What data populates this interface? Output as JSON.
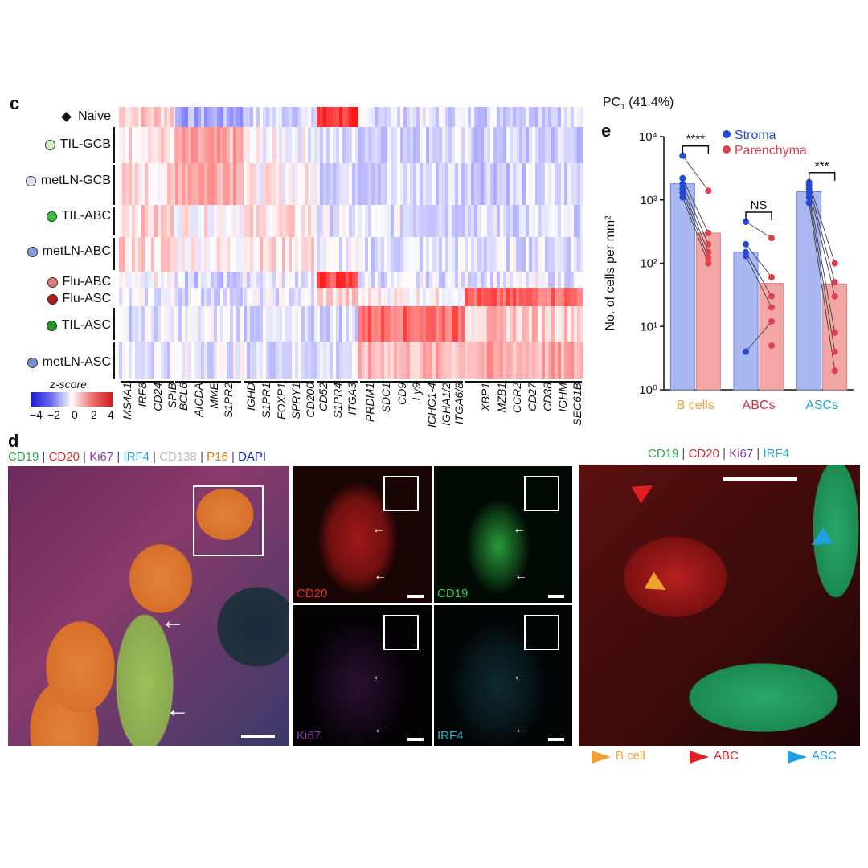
{
  "panel_c": {
    "letter": "c",
    "pc_label_main": "PC",
    "pc_label_sub": "1",
    "pc_label_pct": "(41.4%)",
    "row_labels": [
      {
        "label": "Naive",
        "marker": "diamond",
        "color": "#111111"
      },
      {
        "label": "TIL-GCB",
        "marker": "dot",
        "color": "#d8f0c8"
      },
      {
        "label": "metLN-GCB",
        "marker": "dot",
        "color": "#d8e2f4"
      },
      {
        "label": "TIL-ABC",
        "marker": "dot",
        "color": "#3fbf3f"
      },
      {
        "label": "metLN-ABC",
        "marker": "dot",
        "color": "#7f9fd8"
      },
      {
        "label": "Flu-ABC",
        "marker": "dot",
        "color": "#e07a7a"
      },
      {
        "label": "Flu-ASC",
        "marker": "dot",
        "color": "#b21a1a"
      },
      {
        "label": "TIL-ASC",
        "marker": "dot",
        "color": "#1f9a2a"
      },
      {
        "label": "metLN-ASC",
        "marker": "dot",
        "color": "#6f8fd0"
      }
    ],
    "genes": [
      "MS4A1",
      "IRF8",
      "CD24",
      "SPIB",
      "BCL6",
      "AICDA",
      "MME",
      "S1PR2",
      "IGHD",
      "S1PR1",
      "FOXP1",
      "SPRY1",
      "CD200",
      "CD52",
      "S1PR4",
      "ITGA3",
      "PRDM1",
      "SDC1",
      "CD9",
      "Ly9",
      "IGHG1-4",
      "IGHA1/2",
      "ITGA6/8",
      "XBP1",
      "MZB1",
      "CCR2",
      "CD27",
      "CD38",
      "IGHM",
      "SEC61B"
    ],
    "colorbar": {
      "title": "z-score",
      "ticks": [
        "−4",
        "−2",
        "0",
        "2",
        "4"
      ]
    }
  },
  "panel_e": {
    "letter": "e",
    "ylabel": "No. of cells per mm²",
    "yticks": [
      "10⁰",
      "10¹",
      "10²",
      "10³",
      "10⁴"
    ],
    "legend": [
      {
        "label": "Stroma",
        "color": "#2448d8"
      },
      {
        "label": "Parenchyma",
        "color": "#e04050"
      }
    ],
    "significance": [
      "****",
      "NS",
      "***"
    ]
  },
  "chart_data": {
    "type": "bar",
    "categories": [
      "B cells",
      "ABCs",
      "ASCs"
    ],
    "category_colors": [
      "#e8a23a",
      "#d63046",
      "#2aa8d8"
    ],
    "yscale": "log",
    "ylim": [
      1,
      10000
    ],
    "series": [
      {
        "name": "Stroma",
        "color": "#2448d8",
        "bar_color": "#a9b8f0",
        "values": [
          1800,
          150,
          1350
        ],
        "points": [
          [
            5000,
            2200,
            1800,
            1500,
            1300,
            1100
          ],
          [
            450,
            200,
            150,
            130,
            4
          ],
          [
            1900,
            1700,
            1500,
            1300,
            1100,
            900
          ]
        ]
      },
      {
        "name": "Parenchyma",
        "color": "#e04050",
        "bar_color": "#f2a7a4",
        "values": [
          300,
          48,
          47
        ],
        "points": [
          [
            1400,
            300,
            200,
            150,
            120,
            100
          ],
          [
            250,
            60,
            30,
            20,
            12,
            5
          ],
          [
            100,
            50,
            30,
            8,
            4,
            2
          ]
        ]
      }
    ]
  },
  "panel_d": {
    "letter": "d",
    "header_left": [
      {
        "text": "CD19",
        "color": "#2aa84a"
      },
      {
        "text": "CD20",
        "color": "#d62a2a"
      },
      {
        "text": "Ki67",
        "color": "#8a3aa8"
      },
      {
        "text": "IRF4",
        "color": "#2aa8c8"
      },
      {
        "text": "CD138",
        "color": "#bbbbbb"
      },
      {
        "text": "P16",
        "color": "#e07a1a"
      },
      {
        "text": "DAPI",
        "color": "#1a2aa8"
      }
    ],
    "header_right": [
      {
        "text": "CD19",
        "color": "#2aa84a"
      },
      {
        "text": "CD20",
        "color": "#d62a2a"
      },
      {
        "text": "Ki67",
        "color": "#8a3aa8"
      },
      {
        "text": "IRF4",
        "color": "#2aa8c8"
      }
    ],
    "small_panels": [
      {
        "label": "CD20",
        "color": "#e03030"
      },
      {
        "label": "CD19",
        "color": "#3ac84a"
      },
      {
        "label": "Ki67",
        "color": "#8a3aa8"
      },
      {
        "label": "IRF4",
        "color": "#2ab0c8"
      }
    ],
    "arrow_legend": [
      {
        "label": "B cell",
        "color": "#f0a030"
      },
      {
        "label": "ABC",
        "color": "#e02020"
      },
      {
        "label": "ASC",
        "color": "#20a0e0"
      }
    ]
  }
}
